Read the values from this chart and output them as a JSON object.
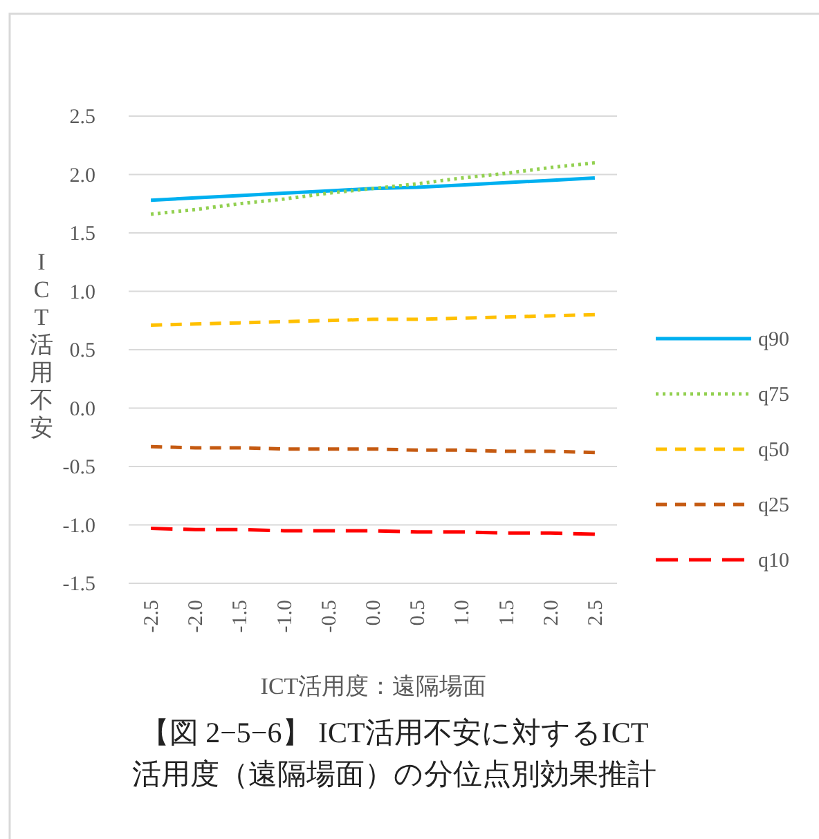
{
  "chart_data": {
    "type": "line",
    "title": "【図 2−5−6】 ICT活用不安に対するICT活用度（遠隔場面）の分位点別効果推計",
    "xlabel": "ICT活用度：遠隔場面",
    "ylabel": "ICT活用不安",
    "categories": [
      "-2.5",
      "-2.0",
      "-1.5",
      "-1.0",
      "-0.5",
      "0.0",
      "0.5",
      "1.0",
      "1.5",
      "2.0",
      "2.5"
    ],
    "ylim": [
      -1.5,
      2.5
    ],
    "yticks": [
      {
        "value": -1.5,
        "label": "-1.5"
      },
      {
        "value": -1,
        "label": "-1.0"
      },
      {
        "value": -0.5,
        "label": "-0.5"
      },
      {
        "value": 0,
        "label": "0.0"
      },
      {
        "value": 0.5,
        "label": "0.5"
      },
      {
        "value": 1,
        "label": "1.0"
      },
      {
        "value": 1.5,
        "label": "1.5"
      },
      {
        "value": 2,
        "label": "2.0"
      },
      {
        "value": 2.5,
        "label": "2.5"
      }
    ],
    "grid": "y",
    "legend": "right",
    "marker": "none",
    "series": [
      {
        "name": "q90",
        "color": "#00b0f0",
        "line_style": "solid",
        "values": [
          1.78,
          1.8,
          1.82,
          1.84,
          1.86,
          1.88,
          1.89,
          1.91,
          1.93,
          1.95,
          1.97
        ]
      },
      {
        "name": "q75",
        "color": "#92d050",
        "line_style": "dotted",
        "values": [
          1.66,
          1.7,
          1.75,
          1.79,
          1.84,
          1.88,
          1.92,
          1.97,
          2.01,
          2.06,
          2.1
        ]
      },
      {
        "name": "q50",
        "color": "#ffc000",
        "line_style": "dashed",
        "values": [
          0.71,
          0.72,
          0.73,
          0.74,
          0.75,
          0.76,
          0.76,
          0.77,
          0.78,
          0.79,
          0.8
        ]
      },
      {
        "name": "q25",
        "color": "#c55a11",
        "line_style": "dashed",
        "values": [
          -0.33,
          -0.34,
          -0.34,
          -0.35,
          -0.35,
          -0.35,
          -0.36,
          -0.36,
          -0.37,
          -0.37,
          -0.38
        ]
      },
      {
        "name": "q10",
        "color": "#ff0000",
        "line_style": "longdash",
        "values": [
          -1.03,
          -1.04,
          -1.04,
          -1.05,
          -1.05,
          -1.05,
          -1.06,
          -1.06,
          -1.07,
          -1.07,
          -1.08
        ]
      }
    ]
  }
}
